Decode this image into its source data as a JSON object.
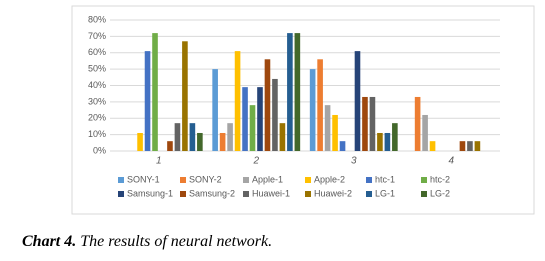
{
  "chart_data": {
    "type": "bar",
    "categories": [
      "1",
      "2",
      "3",
      "4"
    ],
    "series": [
      {
        "name": "SONY-1",
        "color": "#5b9bd5",
        "values": [
          0,
          50,
          50,
          0
        ]
      },
      {
        "name": "SONY-2",
        "color": "#ed7d31",
        "values": [
          0,
          11,
          56,
          33
        ]
      },
      {
        "name": "Apple-1",
        "color": "#a5a5a5",
        "values": [
          0,
          17,
          28,
          22
        ]
      },
      {
        "name": "Apple-2",
        "color": "#ffc000",
        "values": [
          11,
          61,
          22,
          6
        ]
      },
      {
        "name": "htc-1",
        "color": "#4472c4",
        "values": [
          61,
          39,
          6,
          0
        ]
      },
      {
        "name": "htc-2",
        "color": "#70ad47",
        "values": [
          72,
          28,
          0,
          0
        ]
      },
      {
        "name": "Samsung-1",
        "color": "#264478",
        "values": [
          0,
          39,
          61,
          0
        ]
      },
      {
        "name": "Samsung-2",
        "color": "#9e480e",
        "values": [
          6,
          56,
          33,
          6
        ]
      },
      {
        "name": "Huawei-1",
        "color": "#636363",
        "values": [
          17,
          44,
          33,
          6
        ]
      },
      {
        "name": "Huawei-2",
        "color": "#997300",
        "values": [
          67,
          17,
          11,
          6
        ]
      },
      {
        "name": "LG-1",
        "color": "#255e91",
        "values": [
          17,
          72,
          11,
          0
        ]
      },
      {
        "name": "LG-2",
        "color": "#43682b",
        "values": [
          11,
          72,
          17,
          0
        ]
      }
    ],
    "ylim": [
      0,
      80
    ],
    "yticks": [
      {
        "value": 0,
        "label": "0%"
      },
      {
        "value": 10,
        "label": "10%"
      },
      {
        "value": 20,
        "label": "20%"
      },
      {
        "value": 30,
        "label": "30%"
      },
      {
        "value": 40,
        "label": "40%"
      },
      {
        "value": 50,
        "label": "50%"
      },
      {
        "value": 60,
        "label": "60%"
      },
      {
        "value": 70,
        "label": "70%"
      },
      {
        "value": 80,
        "label": "80%"
      }
    ],
    "grid": true,
    "legend": "bottom",
    "caption_label": "Chart 4.",
    "caption": "The results of neural network."
  }
}
